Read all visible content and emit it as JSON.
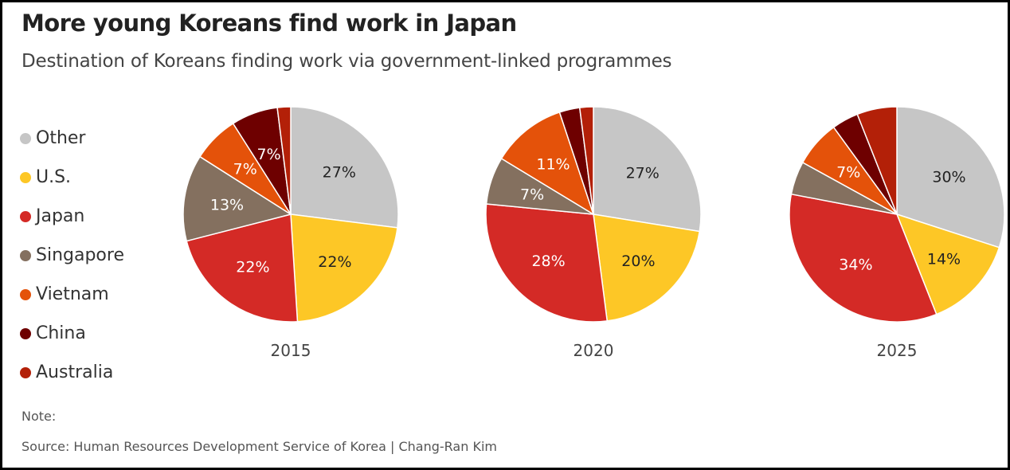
{
  "title": "More young Koreans find work in Japan",
  "subtitle": "Destination of Koreans finding work via government-linked programmes",
  "legend": [
    {
      "label": "Other",
      "color": "#c6c6c6"
    },
    {
      "label": "U.S.",
      "color": "#fdc726"
    },
    {
      "label": "Japan",
      "color": "#d42a26"
    },
    {
      "label": "Singapore",
      "color": "#84705f"
    },
    {
      "label": "Vietnam",
      "color": "#e4520a"
    },
    {
      "label": "China",
      "color": "#6e0000"
    },
    {
      "label": "Australia",
      "color": "#b32008"
    }
  ],
  "note": "Note:",
  "source": "Source: Human Resources Development Service of Korea  | Chang-Ran Kim",
  "chart_data": [
    {
      "type": "pie",
      "year_label": "2015",
      "categories": [
        "Other",
        "U.S.",
        "Japan",
        "Singapore",
        "Vietnam",
        "China",
        "Australia"
      ],
      "values": [
        27,
        22,
        22,
        13,
        7,
        7,
        2
      ],
      "data_labels": [
        "27%",
        "22%",
        "22%",
        "13%",
        "7%",
        "7%",
        ""
      ]
    },
    {
      "type": "pie",
      "year_label": "2020",
      "categories": [
        "Other",
        "U.S.",
        "Japan",
        "Singapore",
        "Vietnam",
        "China",
        "Australia"
      ],
      "values": [
        27,
        20,
        28,
        7,
        11,
        3,
        2
      ],
      "data_labels": [
        "27%",
        "20%",
        "28%",
        "7%",
        "11%",
        "",
        ""
      ]
    },
    {
      "type": "pie",
      "year_label": "2025",
      "categories": [
        "Other",
        "U.S.",
        "Japan",
        "Singapore",
        "Vietnam",
        "China",
        "Australia"
      ],
      "values": [
        30,
        14,
        34,
        5,
        7,
        4,
        6
      ],
      "data_labels": [
        "30%",
        "14%",
        "34%",
        "",
        "7%",
        "",
        ""
      ]
    }
  ]
}
